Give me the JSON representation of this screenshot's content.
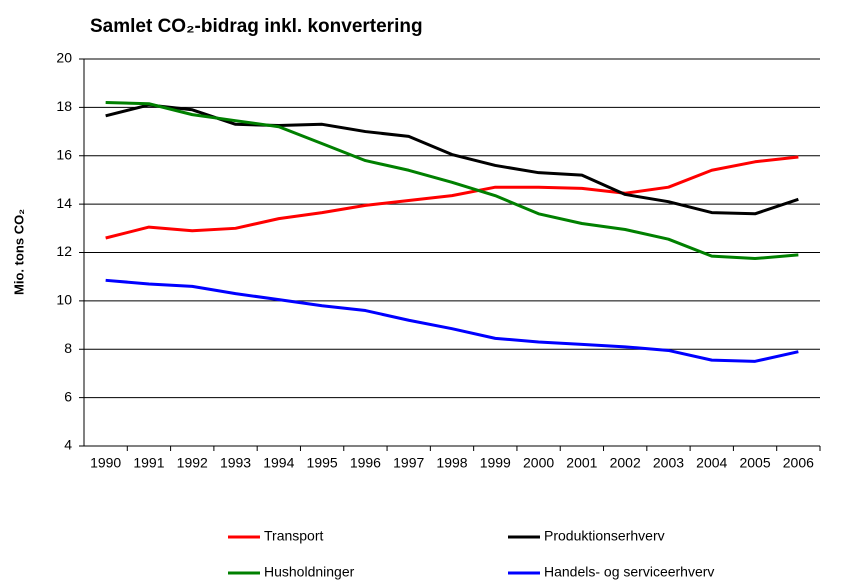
{
  "chart_data": {
    "type": "line",
    "title": "Samlet CO₂-bidrag inkl. konvertering",
    "y_label": "Mio. tons CO₂",
    "categories": [
      "1990",
      "1991",
      "1992",
      "1993",
      "1994",
      "1995",
      "1996",
      "1997",
      "1998",
      "1999",
      "2000",
      "2001",
      "2002",
      "2003",
      "2004",
      "2005",
      "2006"
    ],
    "series": [
      {
        "name": "Transport",
        "color": "#ff0000",
        "values": [
          12.6,
          13.05,
          12.9,
          13.0,
          13.4,
          13.65,
          13.95,
          14.15,
          14.35,
          14.7,
          14.7,
          14.65,
          14.45,
          14.7,
          15.4,
          15.75,
          15.95
        ]
      },
      {
        "name": "Produktionserhverv",
        "color": "#000000",
        "values": [
          17.65,
          18.1,
          17.9,
          17.3,
          17.25,
          17.3,
          17.0,
          16.8,
          16.05,
          15.6,
          15.3,
          15.2,
          14.4,
          14.1,
          13.65,
          13.6,
          14.2
        ]
      },
      {
        "name": "Husholdninger",
        "color": "#008000",
        "values": [
          18.2,
          18.15,
          17.7,
          17.45,
          17.2,
          16.5,
          15.8,
          15.4,
          14.9,
          14.35,
          13.6,
          13.2,
          12.95,
          12.55,
          11.85,
          11.75,
          11.9
        ]
      },
      {
        "name": "Handels- og serviceerhverv",
        "color": "#0000ff",
        "values": [
          10.85,
          10.7,
          10.6,
          10.3,
          10.05,
          9.8,
          9.6,
          9.2,
          8.85,
          8.45,
          8.3,
          8.2,
          8.1,
          7.95,
          7.55,
          7.5,
          7.9
        ]
      }
    ],
    "ylim": [
      4,
      20
    ],
    "yticks": [
      4,
      6,
      8,
      10,
      12,
      14,
      16,
      18,
      20
    ],
    "grid": true
  }
}
